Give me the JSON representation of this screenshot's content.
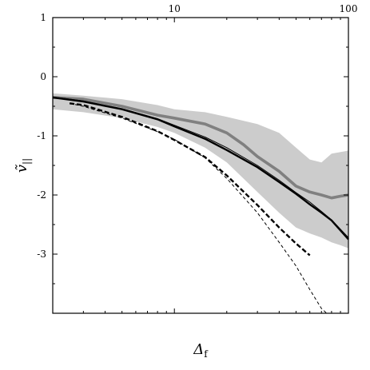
{
  "chart_data": {
    "type": "line",
    "title": "",
    "xlabel": "Δ",
    "xlabel_sub": "f",
    "ylabel": "ṽ",
    "ylabel_sub": "||",
    "x_scale": "log",
    "xlim": [
      2,
      100
    ],
    "ylim": [
      -4,
      1
    ],
    "x_tick_labels_top": [
      {
        "value": 10,
        "label": "10"
      },
      {
        "value": 100,
        "label": "100"
      }
    ],
    "y_ticks": [
      {
        "value": 1,
        "label": "1"
      },
      {
        "value": 0,
        "label": "0"
      },
      {
        "value": -1,
        "label": "-1"
      },
      {
        "value": -2,
        "label": "-2"
      },
      {
        "value": -3,
        "label": "-3"
      }
    ],
    "grid": false,
    "band": {
      "color": "#cccccc",
      "upper": [
        [
          2,
          -0.28
        ],
        [
          3,
          -0.32
        ],
        [
          5,
          -0.38
        ],
        [
          8,
          -0.48
        ],
        [
          10,
          -0.55
        ],
        [
          15,
          -0.6
        ],
        [
          20,
          -0.68
        ],
        [
          30,
          -0.8
        ],
        [
          40,
          -0.95
        ],
        [
          50,
          -1.2
        ],
        [
          60,
          -1.4
        ],
        [
          70,
          -1.45
        ],
        [
          80,
          -1.3
        ],
        [
          100,
          -1.25
        ]
      ],
      "lower": [
        [
          100,
          -2.9
        ],
        [
          90,
          -2.85
        ],
        [
          80,
          -2.8
        ],
        [
          70,
          -2.72
        ],
        [
          60,
          -2.65
        ],
        [
          50,
          -2.55
        ],
        [
          40,
          -2.3
        ],
        [
          30,
          -1.95
        ],
        [
          20,
          -1.45
        ],
        [
          15,
          -1.2
        ],
        [
          10,
          -0.95
        ],
        [
          8,
          -0.85
        ],
        [
          5,
          -0.7
        ],
        [
          3,
          -0.6
        ],
        [
          2,
          -0.55
        ]
      ]
    },
    "series": [
      {
        "style": "gray-thick",
        "color": "#808080",
        "points": [
          [
            2,
            -0.35
          ],
          [
            3,
            -0.38
          ],
          [
            5,
            -0.5
          ],
          [
            8,
            -0.65
          ],
          [
            10,
            -0.7
          ],
          [
            15,
            -0.8
          ],
          [
            20,
            -0.95
          ],
          [
            25,
            -1.15
          ],
          [
            30,
            -1.35
          ],
          [
            40,
            -1.6
          ],
          [
            50,
            -1.85
          ],
          [
            60,
            -1.95
          ],
          [
            70,
            -2.0
          ],
          [
            80,
            -2.05
          ],
          [
            90,
            -2.02
          ],
          [
            100,
            -2.0
          ]
        ]
      },
      {
        "style": "black-thick",
        "color": "#000000",
        "points": [
          [
            2,
            -0.35
          ],
          [
            3,
            -0.42
          ],
          [
            5,
            -0.55
          ],
          [
            8,
            -0.72
          ],
          [
            10,
            -0.84
          ],
          [
            15,
            -1.05
          ],
          [
            20,
            -1.24
          ],
          [
            30,
            -1.53
          ],
          [
            40,
            -1.78
          ],
          [
            50,
            -1.98
          ],
          [
            60,
            -2.16
          ],
          [
            70,
            -2.3
          ],
          [
            80,
            -2.43
          ],
          [
            100,
            -2.75
          ]
        ]
      },
      {
        "style": "black-thin",
        "color": "#000000",
        "points": [
          [
            2,
            -0.34
          ],
          [
            3,
            -0.41
          ],
          [
            5,
            -0.54
          ],
          [
            8,
            -0.71
          ],
          [
            10,
            -0.82
          ],
          [
            15,
            -1.02
          ],
          [
            20,
            -1.2
          ],
          [
            30,
            -1.5
          ],
          [
            40,
            -1.75
          ],
          [
            50,
            -1.96
          ],
          [
            60,
            -2.12
          ],
          [
            70,
            -2.28
          ],
          [
            80,
            -2.42
          ],
          [
            100,
            -2.72
          ]
        ]
      },
      {
        "style": "black-thick-dashed",
        "color": "#000000",
        "points": [
          [
            2.5,
            -0.45
          ],
          [
            3,
            -0.48
          ],
          [
            5,
            -0.68
          ],
          [
            8,
            -0.92
          ],
          [
            10,
            -1.07
          ],
          [
            15,
            -1.36
          ],
          [
            20,
            -1.67
          ],
          [
            30,
            -2.17
          ],
          [
            40,
            -2.55
          ],
          [
            50,
            -2.82
          ],
          [
            60,
            -3.02
          ]
        ]
      },
      {
        "style": "black-thin-dashed",
        "color": "#000000",
        "points": [
          [
            2.5,
            -0.45
          ],
          [
            3,
            -0.5
          ],
          [
            5,
            -0.7
          ],
          [
            8,
            -0.93
          ],
          [
            10,
            -1.06
          ],
          [
            15,
            -1.37
          ],
          [
            20,
            -1.72
          ],
          [
            30,
            -2.3
          ],
          [
            40,
            -2.8
          ],
          [
            50,
            -3.2
          ],
          [
            60,
            -3.6
          ],
          [
            70,
            -3.92
          ],
          [
            75,
            -4.0
          ]
        ]
      }
    ]
  }
}
